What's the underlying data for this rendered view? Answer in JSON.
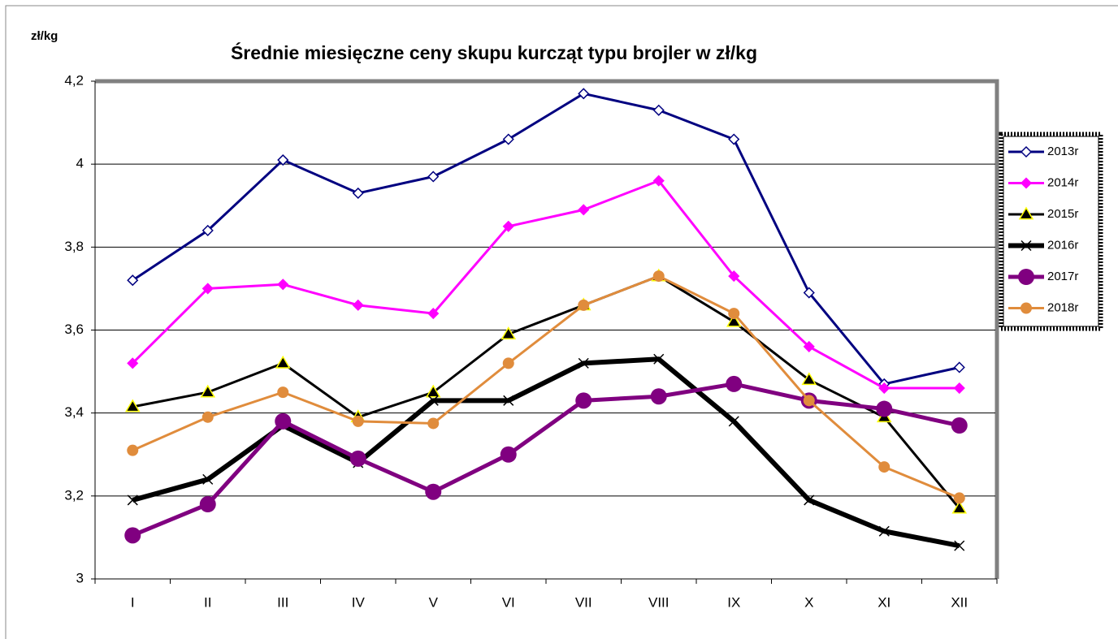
{
  "chart_data": {
    "type": "line",
    "title": "Średnie miesięczne ceny skupu kurcząt typu brojler w zł/kg",
    "y_axis_label": "zł/kg",
    "categories": [
      "I",
      "II",
      "III",
      "IV",
      "V",
      "VI",
      "VII",
      "VIII",
      "IX",
      "X",
      "XI",
      "XII"
    ],
    "ylim": [
      3,
      4.2
    ],
    "yticks": [
      3,
      {
        "value": 3.2,
        "label": "3,2"
      },
      {
        "value": 3.4,
        "label": "3,4"
      },
      {
        "value": 3.6,
        "label": "3,6"
      },
      {
        "value": 3.8,
        "label": "3,8"
      },
      4,
      {
        "value": 4.2,
        "label": "4,2"
      }
    ],
    "grid": true,
    "legend": "right",
    "series": [
      {
        "name": "2013r",
        "color": "#000080",
        "marker": "diamond-open",
        "line_width": 3,
        "values": [
          3.72,
          3.84,
          4.01,
          3.93,
          3.97,
          4.06,
          4.17,
          4.13,
          4.06,
          3.69,
          3.47,
          3.51
        ]
      },
      {
        "name": "2014r",
        "color": "#ff00ff",
        "marker": "diamond",
        "line_width": 3,
        "values": [
          3.52,
          3.7,
          3.71,
          3.66,
          3.64,
          3.85,
          3.89,
          3.96,
          3.73,
          3.56,
          3.46,
          3.46
        ]
      },
      {
        "name": "2015r",
        "color": "#000000",
        "marker": "triangle",
        "line_width": 3,
        "values": [
          3.415,
          3.45,
          3.52,
          3.39,
          3.45,
          3.59,
          3.66,
          3.73,
          3.62,
          3.48,
          3.39,
          3.17
        ]
      },
      {
        "name": "2016r",
        "color": "#000000",
        "marker": "x",
        "line_width": 6,
        "values": [
          3.19,
          3.24,
          3.37,
          3.28,
          3.43,
          3.43,
          3.52,
          3.53,
          3.38,
          3.19,
          3.115,
          3.08
        ]
      },
      {
        "name": "2017r",
        "color": "#800080",
        "marker": "circle-big",
        "line_width": 5,
        "values": [
          3.105,
          3.18,
          3.38,
          3.29,
          3.21,
          3.3,
          3.43,
          3.44,
          3.47,
          3.43,
          3.41,
          3.37
        ]
      },
      {
        "name": "2018r",
        "color": "#e08c3c",
        "marker": "circle",
        "line_width": 3,
        "values": [
          3.31,
          3.39,
          3.45,
          3.38,
          3.375,
          3.52,
          3.66,
          3.73,
          3.64,
          3.43,
          3.27,
          3.195
        ]
      }
    ]
  }
}
